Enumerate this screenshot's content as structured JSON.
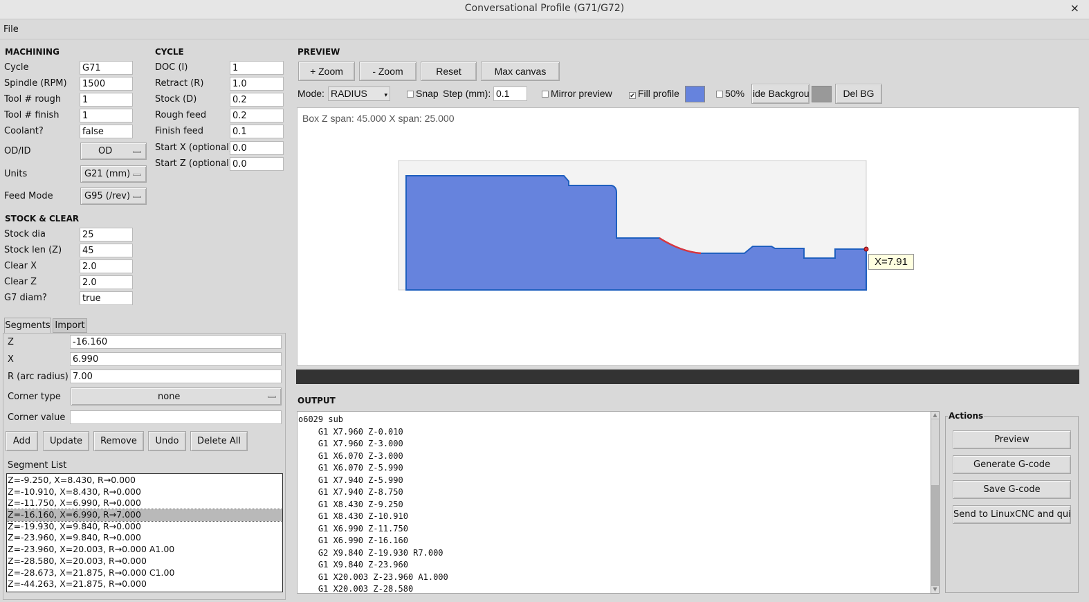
{
  "window": {
    "title": "Conversational Profile (G71/G72)",
    "close": "×"
  },
  "menu": {
    "file": "File"
  },
  "machining": {
    "header": "MACHINING",
    "fields": [
      {
        "label": "Cycle",
        "value": "G71"
      },
      {
        "label": "Spindle (RPM)",
        "value": "1500"
      },
      {
        "label": "Tool # rough",
        "value": "1"
      },
      {
        "label": "Tool # finish",
        "value": "1"
      },
      {
        "label": "Coolant?",
        "value": "false"
      }
    ],
    "odid": {
      "label": "OD/ID",
      "value": "OD"
    },
    "units": {
      "label": "Units",
      "value": "G21 (mm)"
    },
    "feed_mode": {
      "label": "Feed Mode",
      "value": "G95 (/rev)"
    }
  },
  "cycle": {
    "header": "CYCLE",
    "fields": [
      {
        "label": "DOC (I)",
        "value": "1"
      },
      {
        "label": "Retract (R)",
        "value": "1.0"
      },
      {
        "label": "Stock (D)",
        "value": "0.2"
      },
      {
        "label": "Rough feed",
        "value": "0.2"
      },
      {
        "label": "Finish feed",
        "value": "0.1"
      },
      {
        "label": "Start X (optional)",
        "value": "0.0"
      },
      {
        "label": "Start Z (optional)",
        "value": "0.0"
      }
    ]
  },
  "stock": {
    "header": "STOCK & CLEAR",
    "fields": [
      {
        "label": "Stock dia",
        "value": "25"
      },
      {
        "label": "Stock len (Z)",
        "value": "45"
      },
      {
        "label": "Clear X",
        "value": "2.0"
      },
      {
        "label": "Clear Z",
        "value": "2.0"
      },
      {
        "label": "G7 diam?",
        "value": "true"
      }
    ]
  },
  "tabs": [
    {
      "label": "Segments",
      "active": true
    },
    {
      "label": "Import",
      "active": false
    }
  ],
  "segment_editor": {
    "z": {
      "label": "Z",
      "value": "-16.160"
    },
    "x": {
      "label": "X",
      "value": "6.990"
    },
    "r": {
      "label": "R (arc radius)",
      "value": "7.00"
    },
    "corner_type": {
      "label": "Corner type",
      "value": "none"
    },
    "corner_value": {
      "label": "Corner value",
      "value": ""
    },
    "buttons": [
      "Add",
      "Update",
      "Remove",
      "Undo",
      "Delete All"
    ]
  },
  "segment_list": {
    "label": "Segment List",
    "selected_index": 3,
    "items": [
      "Z=-9.250, X=8.430, R→0.000",
      "Z=-10.910, X=8.430, R→0.000",
      "Z=-11.750, X=6.990, R→0.000",
      "Z=-16.160, X=6.990, R→7.000",
      "Z=-19.930, X=9.840, R→0.000",
      "Z=-23.960, X=9.840, R→0.000",
      "Z=-23.960, X=20.003, R→0.000 A1.00",
      "Z=-28.580, X=20.003, R→0.000",
      "Z=-28.673, X=21.875, R→0.000 C1.00",
      "Z=-44.263, X=21.875, R→0.000"
    ]
  },
  "preview": {
    "header": "PREVIEW",
    "buttons": {
      "zoom_in": "+ Zoom",
      "zoom_out": "- Zoom",
      "reset": "Reset",
      "max_canvas": "Max canvas"
    },
    "mode_label": "Mode:",
    "mode_value": "RADIUS",
    "snap": {
      "label": "Snap",
      "checked": false
    },
    "step_label": "Step (mm):",
    "step_value": "0.1",
    "mirror": {
      "label": "Mirror preview",
      "checked": false
    },
    "fill": {
      "label": "Fill profile",
      "checked": true
    },
    "fill_color": "#6683dd",
    "half": {
      "label": "50%",
      "checked": false
    },
    "hide_bg": "ide Backgrour",
    "bg_color": "#999999",
    "del_bg": "Del BG",
    "span_text": "Box Z span: 45.000  X span: 25.000",
    "tooltip": "X=7.91",
    "profile_color": "#6683dd",
    "profile_outline": "#1f5fbf",
    "arc_color": "#d9363e"
  },
  "output": {
    "header": "OUTPUT",
    "lines": [
      "o6029 sub",
      "    G1 X7.960 Z-0.010",
      "    G1 X7.960 Z-3.000",
      "    G1 X6.070 Z-3.000",
      "    G1 X6.070 Z-5.990",
      "    G1 X7.940 Z-5.990",
      "    G1 X7.940 Z-8.750",
      "    G1 X8.430 Z-9.250",
      "    G1 X8.430 Z-10.910",
      "    G1 X6.990 Z-11.750",
      "    G1 X6.990 Z-16.160",
      "    G2 X9.840 Z-19.930 R7.000",
      "    G1 X9.840 Z-23.960",
      "    G1 X20.003 Z-23.960 A1.000",
      "    G1 X20.003 Z-28.580"
    ]
  },
  "actions": {
    "label": "Actions",
    "buttons": [
      "Preview",
      "Generate G-code",
      "Save G-code",
      "Send to LinuxCNC and quit"
    ]
  }
}
